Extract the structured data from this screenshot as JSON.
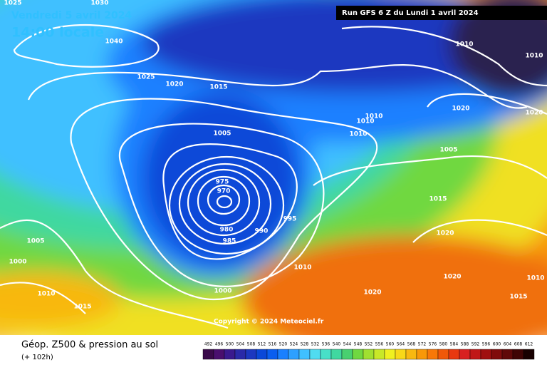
{
  "header": {
    "date": "Vendredi 5 avril 2024",
    "time": "14:00 locale",
    "run": "Run GFS 6 Z du Lundi 1 avril 2024"
  },
  "isobar_labels": [
    "1025",
    "1030",
    "1040",
    "1025",
    "1020",
    "1015",
    "1010",
    "1010",
    "1020",
    "1020",
    "1010",
    "1010",
    "1010",
    "1005",
    "1005",
    "975",
    "970",
    "980",
    "985",
    "990",
    "995",
    "1015",
    "1020",
    "1005",
    "1000",
    "1010",
    "1020",
    "1010",
    "1010",
    "1000",
    "1015",
    "1020",
    "1015"
  ],
  "copyright": "Copyright © 2024 Meteociel.fr",
  "footer": {
    "title": "Géop. Z500 & pression au sol",
    "subtitle": "(+ 102h)"
  },
  "legend": {
    "values": [
      492,
      496,
      500,
      504,
      508,
      512,
      516,
      520,
      524,
      528,
      532,
      536,
      540,
      544,
      548,
      552,
      556,
      560,
      564,
      568,
      572,
      576,
      580,
      584,
      588,
      592,
      596,
      600,
      604,
      608,
      612
    ],
    "colors": [
      "#3a0a4a",
      "#4a0f6e",
      "#3a1a8e",
      "#2a2aa8",
      "#1c38c0",
      "#0a48d8",
      "#0a5ef0",
      "#1a80ff",
      "#2ea0ff",
      "#40c0ff",
      "#50dcf0",
      "#48e0c8",
      "#40d8a0",
      "#48d070",
      "#70d840",
      "#a0e030",
      "#c8e828",
      "#f0f020",
      "#f8d818",
      "#f8b810",
      "#f89808",
      "#f87808",
      "#f05808",
      "#e83810",
      "#d82020",
      "#c01818",
      "#a01010",
      "#800c0c",
      "#600808",
      "#400404",
      "#180000"
    ]
  }
}
